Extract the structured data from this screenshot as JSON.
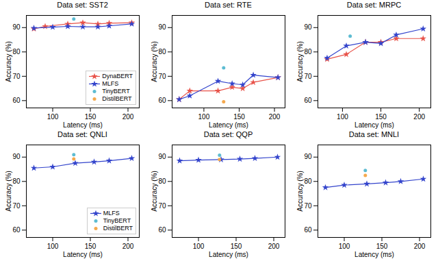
{
  "chart_data": [
    {
      "type": "line",
      "title": "Data set: SST2",
      "xlabel": "Latency (ms)",
      "ylabel": "Accuracy (%)",
      "xlim": [
        65,
        215
      ],
      "xticks": [
        100,
        150,
        200
      ],
      "ylim": [
        57,
        95
      ],
      "yticks": [
        60,
        70,
        80,
        90
      ],
      "legend": "lower right",
      "series": [
        {
          "name": "DynaBERT",
          "type": "line",
          "marker": "star",
          "color": "#e8534a",
          "x": [
            75,
            90,
            120,
            140,
            160,
            175,
            205
          ],
          "values": [
            89.5,
            90.5,
            91.5,
            92.0,
            91.5,
            91.8,
            92.0
          ]
        },
        {
          "name": "MLFS",
          "type": "line",
          "marker": "star",
          "color": "#3344cc",
          "x": [
            75,
            100,
            120,
            140,
            160,
            175,
            205
          ],
          "values": [
            89.8,
            90.2,
            90.5,
            90.3,
            90.3,
            90.7,
            91.5
          ]
        },
        {
          "name": "TinyBERT",
          "type": "scatter",
          "marker": "circle",
          "color": "#5dbcd2",
          "x": [
            128
          ],
          "values": [
            93.5
          ]
        },
        {
          "name": "DistilBERT",
          "type": "scatter",
          "marker": "circle",
          "color": "#f5a94e",
          "x": [],
          "values": []
        }
      ]
    },
    {
      "type": "line",
      "title": "Data set: RTE",
      "xlabel": "Latency (ms)",
      "ylabel": "Accuracy (%)",
      "xlim": [
        55,
        215
      ],
      "xticks": [
        100,
        150,
        200
      ],
      "ylim": [
        57,
        95
      ],
      "yticks": [
        60,
        70,
        80,
        90
      ],
      "series": [
        {
          "name": "DynaBERT",
          "type": "line",
          "marker": "star",
          "color": "#e8534a",
          "x": [
            65,
            80,
            120,
            140,
            155,
            170,
            205
          ],
          "values": [
            60.5,
            64.0,
            64.0,
            65.5,
            65.0,
            67.5,
            69.5
          ]
        },
        {
          "name": "MLFS",
          "type": "line",
          "marker": "star",
          "color": "#3344cc",
          "x": [
            65,
            80,
            120,
            140,
            155,
            170,
            205
          ],
          "values": [
            60.5,
            62.0,
            68.0,
            67.0,
            66.5,
            70.5,
            69.5
          ]
        },
        {
          "name": "TinyBERT",
          "type": "scatter",
          "marker": "circle",
          "color": "#5dbcd2",
          "x": [
            128
          ],
          "values": [
            73.5
          ]
        },
        {
          "name": "DistilBERT",
          "type": "scatter",
          "marker": "circle",
          "color": "#f5a94e",
          "x": [
            128
          ],
          "values": [
            59.5
          ]
        }
      ]
    },
    {
      "type": "line",
      "title": "Data set: MRPC",
      "xlabel": "Latency (ms)",
      "ylabel": "Accuracy (%)",
      "xlim": [
        68,
        215
      ],
      "xticks": [
        100,
        150,
        200
      ],
      "ylim": [
        57,
        95
      ],
      "yticks": [
        60,
        70,
        80,
        90
      ],
      "series": [
        {
          "name": "DynaBERT",
          "type": "line",
          "marker": "star",
          "color": "#e8534a",
          "x": [
            80,
            105,
            130,
            150,
            170,
            205
          ],
          "values": [
            77.0,
            79.0,
            84.0,
            84.0,
            85.5,
            85.5
          ]
        },
        {
          "name": "MLFS",
          "type": "line",
          "marker": "star",
          "color": "#3344cc",
          "x": [
            80,
            105,
            130,
            150,
            170,
            205
          ],
          "values": [
            77.5,
            82.5,
            84.0,
            83.5,
            87.0,
            89.5
          ]
        },
        {
          "name": "TinyBERT",
          "type": "scatter",
          "marker": "circle",
          "color": "#5dbcd2",
          "x": [
            110
          ],
          "values": [
            86.5
          ]
        }
      ]
    },
    {
      "type": "line",
      "title": "Data set: QNLI",
      "xlabel": "Latency (ms)",
      "ylabel": "Accuracy (%)",
      "xlim": [
        65,
        215
      ],
      "xticks": [
        100,
        150,
        200
      ],
      "ylim": [
        57,
        95
      ],
      "yticks": [
        60,
        70,
        80,
        90
      ],
      "legend": "lower right",
      "series": [
        {
          "name": "MLFS",
          "type": "line",
          "marker": "star",
          "color": "#3344cc",
          "x": [
            75,
            100,
            130,
            155,
            175,
            205
          ],
          "values": [
            85.5,
            86.0,
            87.5,
            88.0,
            88.5,
            89.5
          ]
        },
        {
          "name": "TinyBERT",
          "type": "scatter",
          "marker": "circle",
          "color": "#5dbcd2",
          "x": [
            128
          ],
          "values": [
            91.0
          ]
        },
        {
          "name": "DistilBERT",
          "type": "scatter",
          "marker": "circle",
          "color": "#f5a94e",
          "x": [
            128
          ],
          "values": [
            89.2
          ]
        }
      ]
    },
    {
      "type": "line",
      "title": "Data set: QQP",
      "xlabel": "Latency (ms)",
      "ylabel": "Accuracy (%)",
      "xlim": [
        65,
        215
      ],
      "xticks": [
        100,
        150,
        200
      ],
      "ylim": [
        57,
        95
      ],
      "yticks": [
        60,
        70,
        80,
        90
      ],
      "series": [
        {
          "name": "MLFS",
          "type": "line",
          "marker": "star",
          "color": "#3344cc",
          "x": [
            75,
            100,
            130,
            155,
            175,
            205
          ],
          "values": [
            88.5,
            88.8,
            89.0,
            89.2,
            89.5,
            90.0
          ]
        },
        {
          "name": "TinyBERT",
          "type": "scatter",
          "marker": "circle",
          "color": "#5dbcd2",
          "x": [
            128
          ],
          "values": [
            90.8
          ]
        },
        {
          "name": "DistilBERT",
          "type": "scatter",
          "marker": "circle",
          "color": "#f5a94e",
          "x": [
            128
          ],
          "values": [
            89.0
          ]
        }
      ]
    },
    {
      "type": "line",
      "title": "Data set: MNLI",
      "xlabel": "Latency (ms)",
      "ylabel": "Accuracy (%)",
      "xlim": [
        65,
        215
      ],
      "xticks": [
        100,
        150,
        200
      ],
      "ylim": [
        57,
        95
      ],
      "yticks": [
        60,
        70,
        80,
        90
      ],
      "series": [
        {
          "name": "MLFS",
          "type": "line",
          "marker": "star",
          "color": "#3344cc",
          "x": [
            75,
            100,
            130,
            155,
            175,
            205
          ],
          "values": [
            77.5,
            78.5,
            79.0,
            79.5,
            80.0,
            81.0
          ]
        },
        {
          "name": "TinyBERT",
          "type": "scatter",
          "marker": "circle",
          "color": "#5dbcd2",
          "x": [
            128
          ],
          "values": [
            84.5
          ]
        },
        {
          "name": "DistilBERT",
          "type": "scatter",
          "marker": "circle",
          "color": "#f5a94e",
          "x": [
            128
          ],
          "values": [
            82.5
          ]
        }
      ]
    }
  ]
}
